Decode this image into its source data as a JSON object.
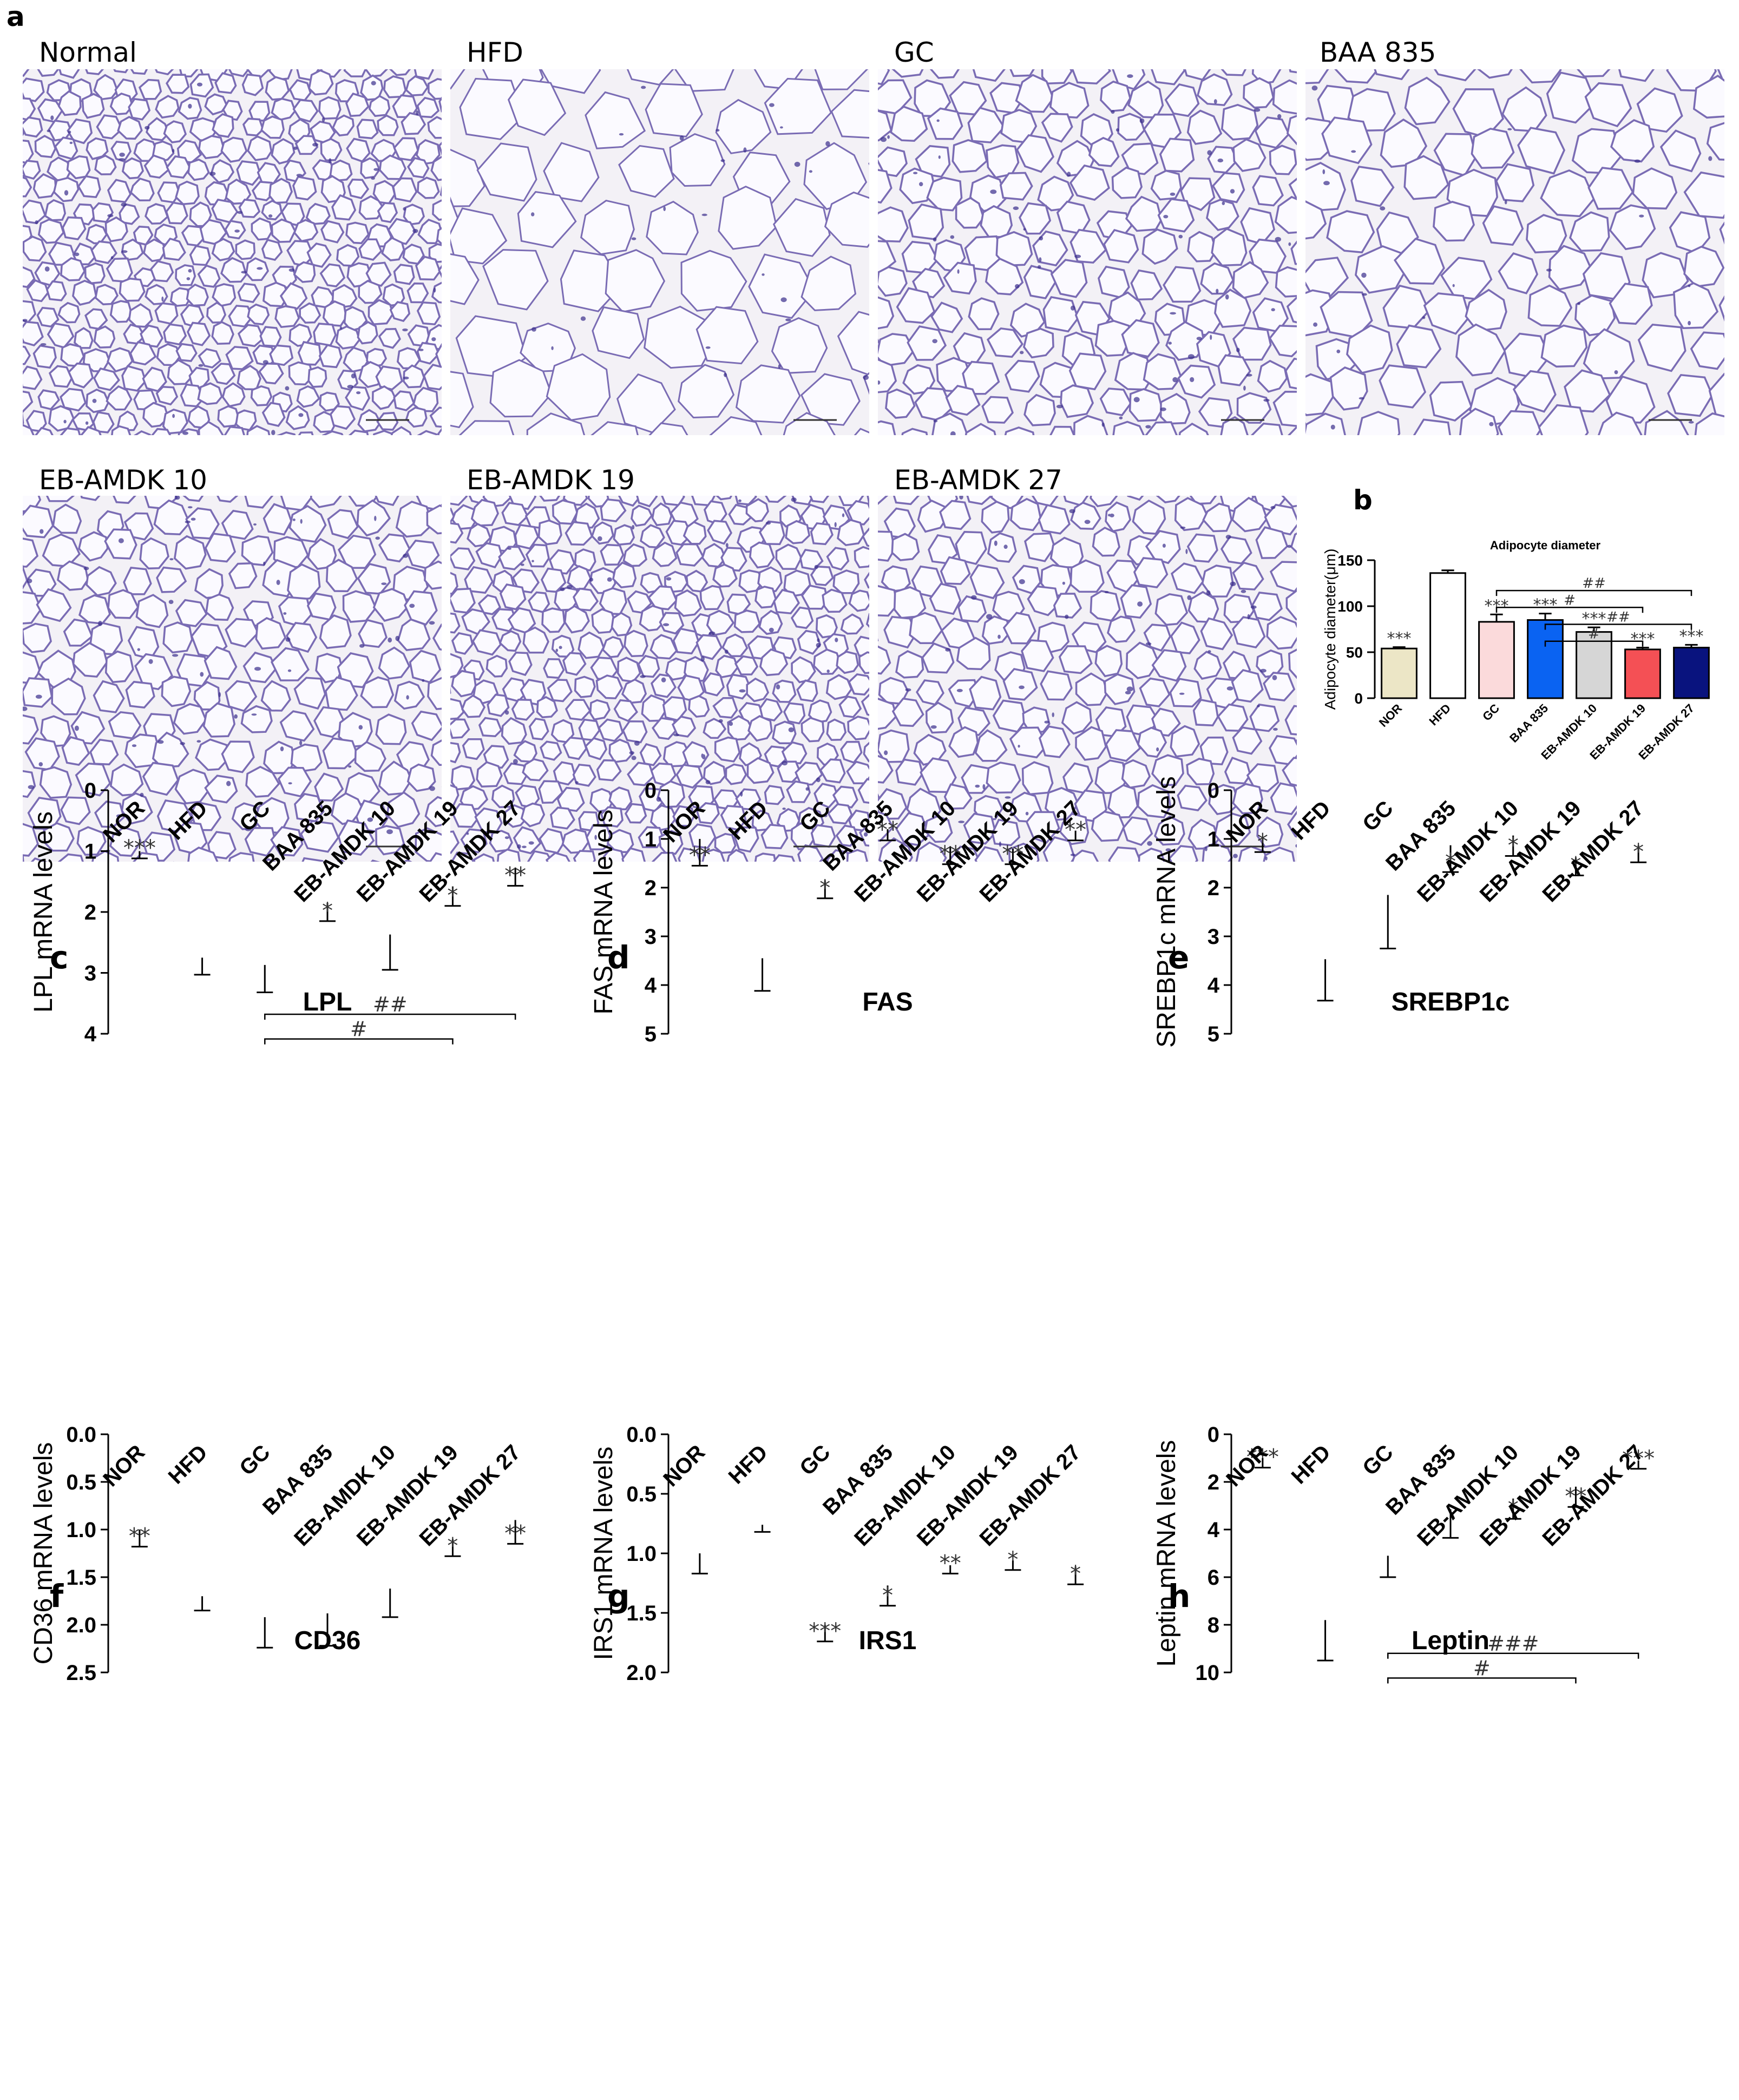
{
  "panel_letters": {
    "a": "a",
    "b": "b",
    "c": "c",
    "d": "d",
    "e": "e",
    "f": "f",
    "g": "g",
    "h": "h"
  },
  "micrographs": [
    {
      "label": "Normal",
      "density": "small"
    },
    {
      "label": "HFD",
      "density": "large"
    },
    {
      "label": "GC",
      "density": "medium"
    },
    {
      "label": "BAA 835",
      "density": "medium-large"
    },
    {
      "label": "EB-AMDK 10",
      "density": "medium"
    },
    {
      "label": "EB-AMDK 19",
      "density": "small"
    },
    {
      "label": "EB-AMDK 27",
      "density": "medium"
    }
  ],
  "colors": {
    "NOR": "#ece6c6",
    "HFD": "#ffffff",
    "GC": "#fbdadb",
    "BAA 835": "#0a63f2",
    "EB-AMDK 10": "#d6d6d6",
    "EB-AMDK 19": "#f45055",
    "EB-AMDK 27": "#09137e",
    "tissue_bg": "#f3f1f6",
    "cell_wall": "#7a6cb4",
    "stroma": "#3a2e8c"
  },
  "chart_data": [
    {
      "panel": "b",
      "type": "bar",
      "title": "Adipocyte diameter",
      "ylabel": "Adipocyte diameter(μm)",
      "categories": [
        "NOR",
        "HFD",
        "GC",
        "BAA 835",
        "EB-AMDK 10",
        "EB-AMDK 19",
        "EB-AMDK 27"
      ],
      "values": [
        54,
        136,
        83,
        85,
        72,
        53,
        55
      ],
      "errors": [
        1.5,
        3,
        8,
        7,
        5,
        2,
        3
      ],
      "stars": [
        "***",
        "",
        "***",
        "***",
        "***",
        "***",
        "***"
      ],
      "ylim": [
        0,
        150
      ],
      "yticks": [
        "0",
        "50",
        "100",
        "150"
      ],
      "brackets": [
        {
          "from": 2,
          "to": 6,
          "label": "##"
        },
        {
          "from": 2,
          "to": 5,
          "label": "#"
        },
        {
          "from": 3,
          "to": 6,
          "label": "##"
        },
        {
          "from": 3,
          "to": 5,
          "label": "#"
        }
      ]
    },
    {
      "panel": "c",
      "type": "bar",
      "title": "LPL",
      "ylabel": "LPL mRNA levels",
      "categories": [
        "NOR",
        "HFD",
        "GC",
        "BAA 835",
        "EB-AMDK 10",
        "EB-AMDK 19",
        "EB-AMDK 27"
      ],
      "values": [
        1.0,
        2.75,
        2.87,
        1.85,
        2.37,
        1.58,
        1.27
      ],
      "errors": [
        0.12,
        0.28,
        0.45,
        0.3,
        0.58,
        0.32,
        0.3
      ],
      "stars": [
        "***",
        "",
        "",
        "*",
        "",
        "*",
        "**"
      ],
      "ylim": [
        0,
        4
      ],
      "yticks": [
        "0",
        "1",
        "2",
        "3",
        "4"
      ],
      "brackets": [
        {
          "from": 2,
          "to": 6,
          "label": "##"
        },
        {
          "from": 2,
          "to": 5,
          "label": "#"
        }
      ]
    },
    {
      "panel": "d",
      "type": "bar",
      "title": "FAS",
      "ylabel": "FAS mRNA levels",
      "categories": [
        "NOR",
        "HFD",
        "GC",
        "BAA 835",
        "EB-AMDK 10",
        "EB-AMDK 19",
        "EB-AMDK 27"
      ],
      "values": [
        1.0,
        3.45,
        1.85,
        0.8,
        1.15,
        1.2,
        0.83
      ],
      "errors": [
        0.55,
        0.67,
        0.37,
        0.23,
        0.37,
        0.32,
        0.2
      ],
      "stars": [
        "**",
        "",
        "*",
        "**",
        "**",
        "**",
        "**"
      ],
      "ylim": [
        0,
        5
      ],
      "yticks": [
        "0",
        "1",
        "2",
        "3",
        "4",
        "5"
      ],
      "brackets": []
    },
    {
      "panel": "e",
      "type": "bar",
      "title": "SREBP1c",
      "ylabel": "SREBP1c mRNA levels",
      "categories": [
        "NOR",
        "HFD",
        "GC",
        "BAA 835",
        "EB-AMDK 10",
        "EB-AMDK 19",
        "EB-AMDK 27"
      ],
      "values": [
        1.0,
        3.47,
        2.15,
        1.13,
        0.93,
        1.38,
        1.13
      ],
      "errors": [
        0.27,
        0.85,
        1.1,
        0.55,
        0.42,
        0.37,
        0.35
      ],
      "stars": [
        "*",
        "",
        "",
        "*",
        "*",
        "*",
        "*"
      ],
      "ylim": [
        0,
        5
      ],
      "yticks": [
        "0",
        "1",
        "2",
        "3",
        "4",
        "5"
      ],
      "brackets": []
    },
    {
      "panel": "f",
      "type": "bar",
      "title": "CD36",
      "ylabel": "CD36 mRNA levels",
      "categories": [
        "NOR",
        "HFD",
        "GC",
        "BAA 835",
        "EB-AMDK 10",
        "EB-AMDK 19",
        "EB-AMDK 27"
      ],
      "values": [
        1.0,
        1.7,
        1.92,
        1.88,
        1.62,
        1.1,
        0.9
      ],
      "errors": [
        0.18,
        0.15,
        0.32,
        0.34,
        0.3,
        0.18,
        0.25
      ],
      "stars": [
        "**",
        "",
        "",
        "",
        "",
        "*",
        "**"
      ],
      "ylim": [
        0,
        2.5
      ],
      "yticks": [
        "0.0",
        "0.5",
        "1.0",
        "1.5",
        "2.0",
        "2.5"
      ],
      "brackets": []
    },
    {
      "panel": "g",
      "type": "bar",
      "title": "IRS1",
      "ylabel": "IRS1 mRNA levels",
      "categories": [
        "NOR",
        "HFD",
        "GC",
        "BAA 835",
        "EB-AMDK 10",
        "EB-AMDK 19",
        "EB-AMDK 27"
      ],
      "values": [
        1.0,
        0.76,
        1.6,
        1.27,
        1.1,
        1.06,
        1.11
      ],
      "errors": [
        0.17,
        0.06,
        0.14,
        0.17,
        0.07,
        0.08,
        0.15
      ],
      "stars": [
        "",
        "",
        "***",
        "*",
        "**",
        "*",
        "*"
      ],
      "ylim": [
        0,
        2.0
      ],
      "yticks": [
        "0.0",
        "0.5",
        "1.0",
        "1.5",
        "2.0"
      ],
      "brackets": []
    },
    {
      "panel": "h",
      "type": "bar",
      "title": "Leptin",
      "ylabel": "Leptin mRNA levels",
      "categories": [
        "NOR",
        "HFD",
        "GC",
        "BAA 835",
        "EB-AMDK 10",
        "EB-AMDK 19",
        "EB-AMDK 27"
      ],
      "values": [
        1.0,
        7.8,
        5.1,
        3.15,
        2.7,
        2.2,
        1.1
      ],
      "errors": [
        0.4,
        1.7,
        0.9,
        1.2,
        0.85,
        0.85,
        0.35
      ],
      "stars": [
        "***",
        "",
        "",
        "",
        "*",
        "**",
        "***"
      ],
      "ylim": [
        0,
        10
      ],
      "yticks": [
        "0",
        "2",
        "4",
        "6",
        "8",
        "10"
      ],
      "brackets": [
        {
          "from": 2,
          "to": 6,
          "label": "###"
        },
        {
          "from": 2,
          "to": 5,
          "label": "#"
        }
      ]
    }
  ]
}
